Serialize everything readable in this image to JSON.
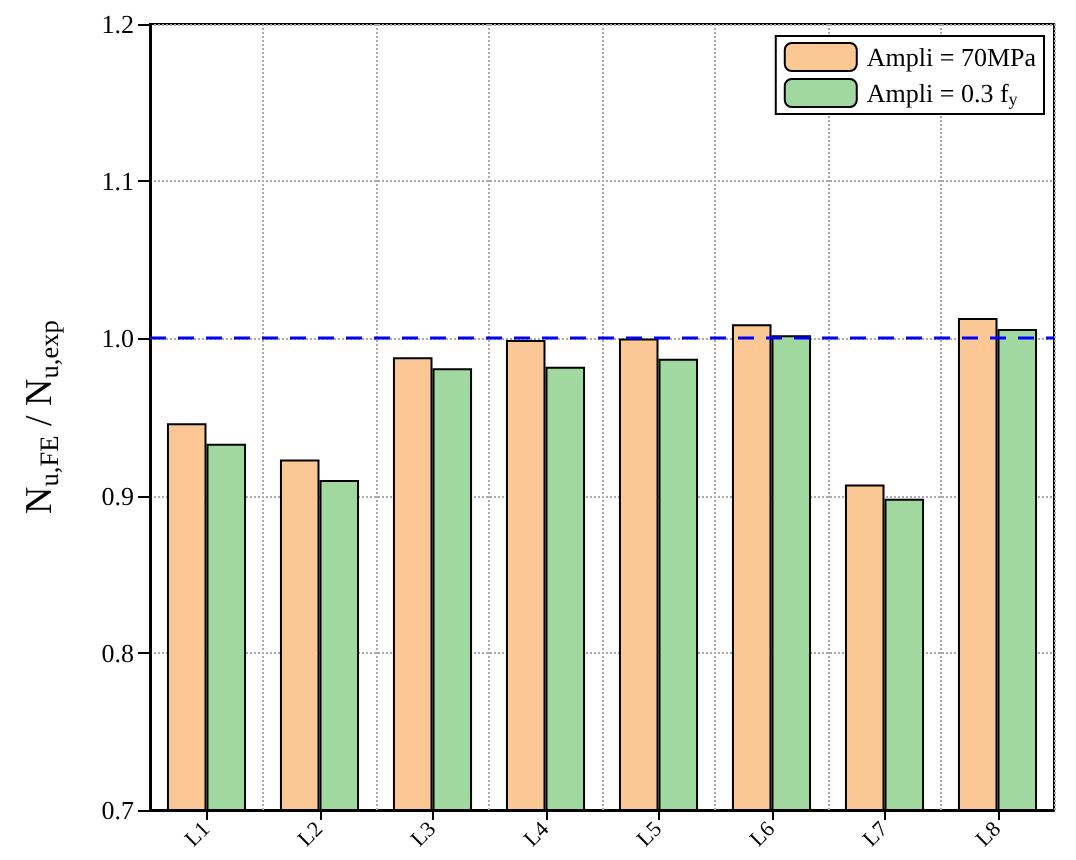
{
  "chart_data": {
    "type": "bar",
    "categories": [
      "L1",
      "L2",
      "L3",
      "L4",
      "L5",
      "L6",
      "L7",
      "L8"
    ],
    "series": [
      {
        "name": "Ampli = 70MPa",
        "color": "#fbc895",
        "values": [
          0.946,
          0.923,
          0.988,
          0.999,
          1.0,
          1.009,
          0.907,
          1.013
        ]
      },
      {
        "name": "Ampli = 0.3 f$_{y}$",
        "color": "#a0d89f",
        "values": [
          0.933,
          0.91,
          0.981,
          0.982,
          0.987,
          1.002,
          0.898,
          1.006
        ]
      }
    ],
    "ylabel": "N$_{u,FE}$ / N$_{u,exp}$",
    "ylim": [
      0.7,
      1.2
    ],
    "yticks": [
      0.7,
      0.8,
      0.9,
      {
        "value": 1,
        "label": "1.0"
      },
      1.1,
      1.2
    ],
    "ref_lines": [
      {
        "axis": "y",
        "value": 1.0,
        "color": "#0000ff",
        "line_style": "dashed"
      }
    ],
    "grid": true,
    "legend": "top right"
  }
}
